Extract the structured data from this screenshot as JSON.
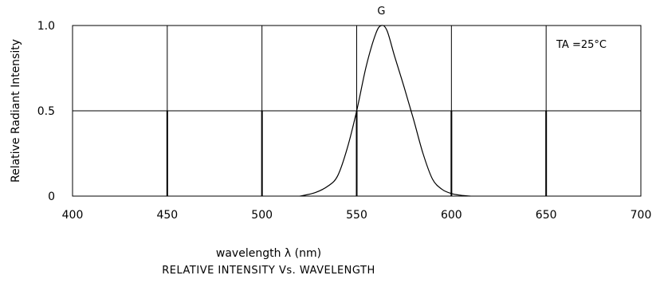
{
  "chart_data": {
    "type": "line",
    "title": "RELATIVE INTENSITY Vs. WAVELENGTH",
    "xlabel": "wavelength λ (nm)",
    "ylabel": "Relative Radiant Intensity",
    "xlim": [
      400,
      700
    ],
    "ylim": [
      0,
      1.0
    ],
    "x_ticks": [
      400,
      450,
      500,
      550,
      600,
      650,
      700
    ],
    "y_ticks": [
      0,
      0.5,
      1.0
    ],
    "x_tick_labels": [
      "400",
      "450",
      "500",
      "550",
      "600",
      "650",
      "700"
    ],
    "y_tick_labels": [
      "0",
      "0.5",
      "1.0"
    ],
    "grid": true,
    "annotation": "TA =25°C",
    "series": [
      {
        "name": "G",
        "x": [
          520,
          528,
          535,
          540,
          545,
          550,
          555,
          560,
          563,
          566,
          570,
          575,
          580,
          585,
          590,
          595,
          600,
          605,
          610
        ],
        "y": [
          0.0,
          0.02,
          0.06,
          0.12,
          0.28,
          0.5,
          0.76,
          0.95,
          1.0,
          0.97,
          0.82,
          0.64,
          0.45,
          0.25,
          0.1,
          0.04,
          0.015,
          0.005,
          0.0
        ]
      }
    ]
  }
}
